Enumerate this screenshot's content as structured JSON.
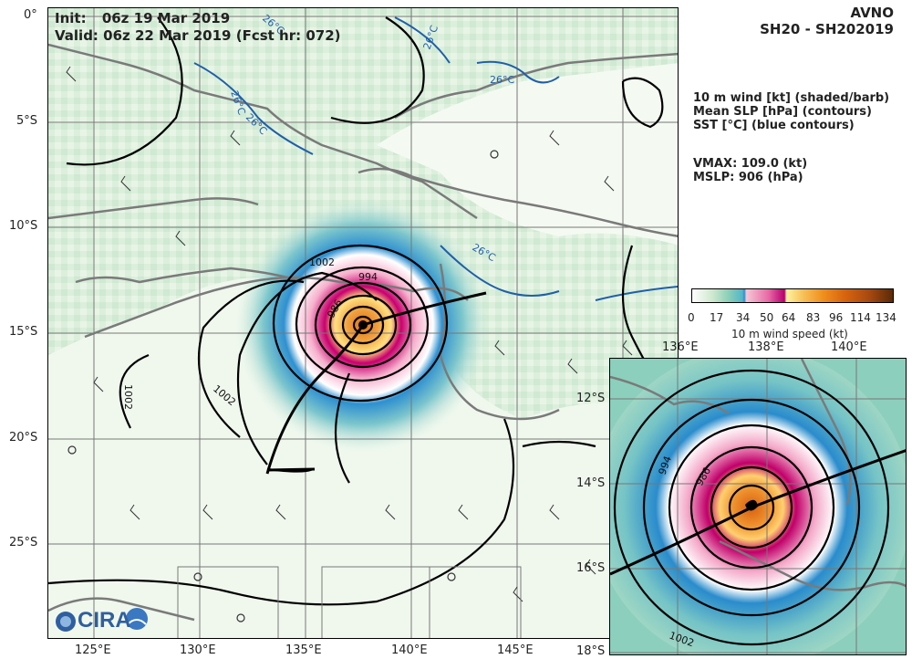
{
  "header": {
    "init_label": "Init:",
    "init_value": "06z 19 Mar 2019",
    "valid": "Valid: 06z 22 Mar 2019 (Fcst hr: 072)",
    "model": "AVNO",
    "storm": "SH20 - SH202019"
  },
  "legend": {
    "line1": "10 m wind [kt] (shaded/barb)",
    "line2": "Mean SLP [hPa] (contours)",
    "line3": "SST [°C] (blue contours)",
    "vmax": "VMAX: 109.0 (kt)",
    "mslp": "MSLP:  906 (hPa)"
  },
  "colorbar": {
    "ticks": [
      "0",
      "17",
      "34",
      "50",
      "64",
      "83",
      "96",
      "114",
      "134"
    ],
    "label": "10 m wind speed (kt)"
  },
  "main_map": {
    "lat_labels": [
      "0°",
      "5°S",
      "10°S",
      "15°S",
      "20°S",
      "25°S"
    ],
    "lon_labels": [
      "125°E",
      "130°E",
      "135°E",
      "140°E",
      "145°E"
    ],
    "contour_labels": [
      "1002",
      "994",
      "986",
      "1002",
      "1002"
    ],
    "sst_labels": [
      "26°C",
      "26°C",
      "26°C",
      "26°C",
      "26°C",
      "26°C"
    ]
  },
  "inset_map": {
    "lon_labels": [
      "136°E",
      "138°E",
      "140°E"
    ],
    "lat_labels": [
      "12°S",
      "14°S",
      "16°S",
      "18°S"
    ],
    "contour_labels": [
      "994",
      "986",
      "1002"
    ]
  },
  "logo": "CIRA",
  "colors": {
    "coast": "#7a7a7a",
    "slp": "#000000",
    "sst": "#1f5fa8",
    "grid": "#777777"
  }
}
